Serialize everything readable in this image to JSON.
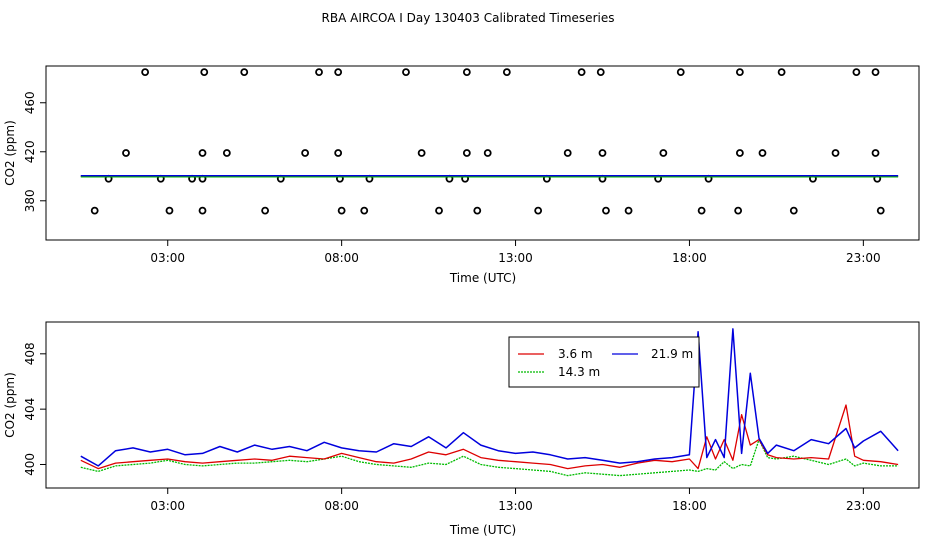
{
  "title": "RBA AIRCOA I  Day 130403  Calibrated Timeseries",
  "colors": {
    "s36": "#dd0000",
    "s143": "#00bb00",
    "s219": "#0000dd",
    "axis": "#000000"
  },
  "chart_data": [
    {
      "type": "scatter",
      "title": "",
      "xlabel": "Time (UTC)",
      "ylabel": "CO2 (ppm)",
      "xlim": [
        23.5,
        48.6
      ],
      "ylim": [
        348,
        490
      ],
      "xticks": [
        27,
        32,
        37,
        42,
        47
      ],
      "xtick_labels": [
        "03:00",
        "08:00",
        "13:00",
        "18:00",
        "23:00"
      ],
      "yticks": [
        380,
        420,
        460
      ],
      "ytick_labels": [
        "380",
        "420",
        "460"
      ],
      "points": [
        [
          26.35,
          485
        ],
        [
          28.05,
          485
        ],
        [
          29.2,
          485
        ],
        [
          31.35,
          485
        ],
        [
          31.9,
          485
        ],
        [
          33.85,
          485
        ],
        [
          35.6,
          485
        ],
        [
          36.75,
          485
        ],
        [
          38.9,
          485
        ],
        [
          39.45,
          485
        ],
        [
          41.75,
          485
        ],
        [
          43.45,
          485
        ],
        [
          44.65,
          485
        ],
        [
          46.8,
          485
        ],
        [
          47.35,
          485
        ],
        [
          25.8,
          419
        ],
        [
          28.0,
          419
        ],
        [
          28.7,
          419
        ],
        [
          30.95,
          419
        ],
        [
          31.9,
          419
        ],
        [
          34.3,
          419
        ],
        [
          35.6,
          419
        ],
        [
          36.2,
          419
        ],
        [
          38.5,
          419
        ],
        [
          39.5,
          419
        ],
        [
          41.25,
          419
        ],
        [
          43.45,
          419
        ],
        [
          44.1,
          419
        ],
        [
          46.2,
          419
        ],
        [
          47.35,
          419
        ],
        [
          25.3,
          398
        ],
        [
          26.8,
          398
        ],
        [
          27.7,
          398
        ],
        [
          28.0,
          398
        ],
        [
          30.25,
          398
        ],
        [
          31.95,
          398
        ],
        [
          32.8,
          398
        ],
        [
          35.1,
          398
        ],
        [
          35.55,
          398
        ],
        [
          37.9,
          398
        ],
        [
          39.5,
          398
        ],
        [
          41.1,
          398
        ],
        [
          42.55,
          398
        ],
        [
          45.55,
          398
        ],
        [
          47.4,
          398
        ],
        [
          24.9,
          372
        ],
        [
          27.05,
          372
        ],
        [
          28.0,
          372
        ],
        [
          29.8,
          372
        ],
        [
          32.0,
          372
        ],
        [
          32.65,
          372
        ],
        [
          34.8,
          372
        ],
        [
          35.9,
          372
        ],
        [
          37.65,
          372
        ],
        [
          39.6,
          372
        ],
        [
          40.25,
          372
        ],
        [
          42.35,
          372
        ],
        [
          43.4,
          372
        ],
        [
          45.0,
          372
        ],
        [
          47.5,
          372
        ]
      ],
      "baseline_series": [
        {
          "name": "3.6 m",
          "value": 400
        },
        {
          "name": "14.3 m",
          "value": 399.5
        },
        {
          "name": "21.9 m",
          "value": 400.5
        }
      ]
    },
    {
      "type": "line",
      "title": "",
      "xlabel": "Time (UTC)",
      "ylabel": "CO2 (ppm)",
      "xlim": [
        23.5,
        48.6
      ],
      "ylim": [
        398.3,
        410.3
      ],
      "xticks": [
        27,
        32,
        37,
        42,
        47
      ],
      "xtick_labels": [
        "03:00",
        "08:00",
        "13:00",
        "18:00",
        "23:00"
      ],
      "yticks": [
        400,
        404,
        408
      ],
      "ytick_labels": [
        "400",
        "404",
        "408"
      ],
      "legend": {
        "position": "top-right",
        "entries": [
          "3.6 m",
          "21.9 m",
          "14.3 m"
        ]
      },
      "x": [
        24.5,
        25,
        25.5,
        26,
        26.5,
        27,
        27.5,
        28,
        28.5,
        29,
        29.5,
        30,
        30.5,
        31,
        31.5,
        32,
        32.5,
        33,
        33.5,
        34,
        34.5,
        35,
        35.5,
        36,
        36.5,
        37,
        37.5,
        38,
        38.5,
        39,
        39.5,
        40,
        40.5,
        41,
        41.5,
        42,
        42.25,
        42.5,
        42.75,
        43,
        43.25,
        43.5,
        43.75,
        44,
        44.25,
        44.5,
        45,
        45.5,
        46,
        46.5,
        46.75,
        47,
        47.5,
        48
      ],
      "series": [
        {
          "name": "3.6 m",
          "values": [
            400.3,
            399.7,
            400.1,
            400.2,
            400.3,
            400.4,
            400.2,
            400.1,
            400.2,
            400.3,
            400.4,
            400.3,
            400.6,
            400.5,
            400.4,
            400.8,
            400.5,
            400.2,
            400.1,
            400.4,
            400.9,
            400.7,
            401.1,
            400.5,
            400.3,
            400.2,
            400.1,
            400.0,
            399.7,
            399.9,
            400.0,
            399.8,
            400.1,
            400.3,
            400.2,
            400.4,
            399.7,
            402.0,
            400.4,
            401.8,
            400.3,
            403.6,
            401.4,
            401.8,
            400.7,
            400.5,
            400.4,
            400.5,
            400.4,
            404.3,
            400.6,
            400.3,
            400.2,
            400.0
          ]
        },
        {
          "name": "14.3 m",
          "values": [
            399.8,
            399.5,
            399.9,
            400.0,
            400.1,
            400.3,
            400.0,
            399.9,
            400.0,
            400.1,
            400.1,
            400.2,
            400.3,
            400.2,
            400.4,
            400.6,
            400.2,
            400.0,
            399.9,
            399.8,
            400.1,
            400.0,
            400.6,
            400.0,
            399.8,
            399.7,
            399.6,
            399.5,
            399.2,
            399.4,
            399.3,
            399.2,
            399.3,
            399.4,
            399.5,
            399.6,
            399.5,
            399.7,
            399.6,
            400.2,
            399.7,
            400.0,
            399.9,
            401.8,
            400.5,
            400.4,
            400.6,
            400.3,
            400.0,
            400.4,
            399.9,
            400.1,
            399.9,
            399.9
          ]
        },
        {
          "name": "21.9 m",
          "values": [
            400.6,
            399.9,
            401.0,
            401.2,
            400.9,
            401.1,
            400.7,
            400.8,
            401.3,
            400.9,
            401.4,
            401.1,
            401.3,
            401.0,
            401.6,
            401.2,
            401.0,
            400.9,
            401.5,
            401.3,
            402.0,
            401.2,
            402.3,
            401.4,
            401.0,
            400.8,
            400.9,
            400.7,
            400.4,
            400.5,
            400.3,
            400.1,
            400.2,
            400.4,
            400.5,
            400.7,
            409.6,
            400.5,
            401.8,
            400.5,
            409.8,
            400.8,
            406.6,
            401.9,
            400.8,
            401.4,
            401.0,
            401.8,
            401.5,
            402.6,
            401.2,
            401.7,
            402.4,
            401.0
          ]
        }
      ]
    }
  ]
}
